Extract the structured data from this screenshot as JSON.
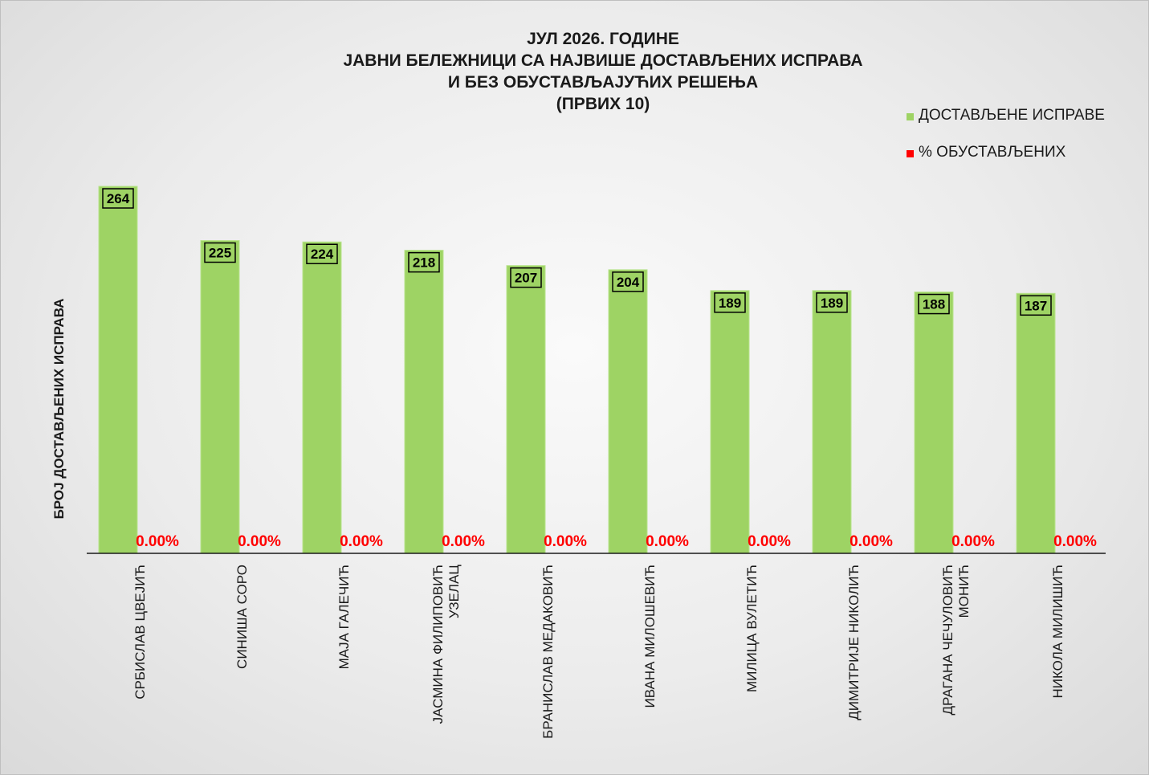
{
  "chart_data": {
    "type": "bar",
    "title_lines": [
      "ЈУЛ 2026. ГОДИНЕ",
      "ЈАВНИ БЕЛЕЖНИЦИ СА НАЈВИШЕ ДОСТАВЉЕНИХ ИСПРАВА",
      "И БЕЗ ОБУСТАВЉАЈУЋИХ РЕШЕЊА",
      "(ПРВИХ 10)"
    ],
    "ylabel": "БРОЈ ДОСТАВЉЕНИХ ИСПРАВА",
    "categories": [
      [
        "СРБИСЛАВ ЦВЕЈИЋ"
      ],
      [
        "СИНИША СОРО"
      ],
      [
        "МАЈА ГАЛЕЧИЋ"
      ],
      [
        "ЈАСМИНА ФИЛИПОВИЋ",
        "УЗЕЛАЦ"
      ],
      [
        "БРАНИСЛАВ МЕДАКОВИЋ"
      ],
      [
        "ИВАНА МИЛОШЕВИЋ"
      ],
      [
        "МИЛИЦА ВУЛЕТИЋ"
      ],
      [
        "ДИМИТРИЈЕ НИКОЛИЋ"
      ],
      [
        "ДРАГАНА ЧЕЧУЛОВИЋ",
        "МОНИЋ"
      ],
      [
        "НИКОЛА МИЛИШИЋ"
      ]
    ],
    "series": [
      {
        "name": "ДОСТАВЉЕНЕ ИСПРАВЕ",
        "color": "#9ed364",
        "values": [
          264,
          225,
          224,
          218,
          207,
          204,
          189,
          189,
          188,
          187
        ],
        "labels": [
          "264",
          "225",
          "224",
          "218",
          "207",
          "204",
          "189",
          "189",
          "188",
          "187"
        ]
      },
      {
        "name": "% ОБУСТАВЉЕНИХ",
        "color": "#ff0000",
        "values": [
          0,
          0,
          0,
          0,
          0,
          0,
          0,
          0,
          0,
          0
        ],
        "labels": [
          "0.00%",
          "0.00%",
          "0.00%",
          "0.00%",
          "0.00%",
          "0.00%",
          "0.00%",
          "0.00%",
          "0.00%",
          "0.00%"
        ]
      }
    ],
    "legend_position": "top-right",
    "grid": false
  }
}
